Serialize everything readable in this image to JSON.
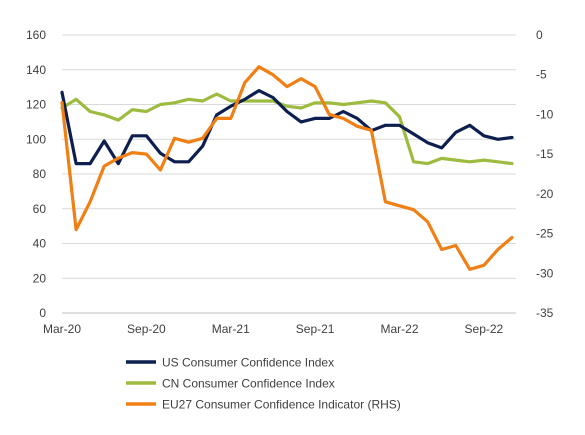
{
  "chart_data": {
    "type": "line",
    "title": "",
    "x_tick_labels": [
      "Mar-20",
      "Sep-20",
      "Mar-21",
      "Sep-21",
      "Mar-22",
      "Sep-22"
    ],
    "x_tick_months": [
      0,
      6,
      12,
      18,
      24,
      30
    ],
    "y_left": {
      "min": 0,
      "max": 160,
      "step": 20,
      "ticks": [
        "0",
        "20",
        "40",
        "60",
        "80",
        "100",
        "120",
        "140",
        "160"
      ]
    },
    "y_right": {
      "min": -35,
      "max": 0,
      "step": 5,
      "ticks": [
        "-35",
        "-30",
        "-25",
        "-20",
        "-15",
        "-10",
        "-5",
        "0"
      ]
    },
    "grid": true,
    "legend_position": "bottom",
    "series": [
      {
        "name": "US Consumer Confidence Index",
        "axis": "left",
        "color": "#0d1f4f",
        "x": [
          0,
          1,
          2,
          3,
          4,
          5,
          6,
          7,
          8,
          9,
          10,
          11,
          12,
          13,
          14,
          15,
          16,
          17,
          18,
          19,
          20,
          21,
          22,
          23,
          24,
          25,
          26,
          27,
          28,
          29,
          30,
          31,
          32
        ],
        "values": [
          127,
          86,
          86,
          99,
          86,
          102,
          102,
          92,
          87,
          87,
          96,
          114,
          119,
          123,
          128,
          124,
          116,
          110,
          112,
          112,
          116,
          112,
          105,
          108,
          108,
          103,
          98,
          95,
          104,
          108,
          102,
          100,
          101
        ]
      },
      {
        "name": "CN Consumer Confidence Index",
        "axis": "left",
        "color": "#9dbb3e",
        "x": [
          0,
          1,
          2,
          3,
          4,
          5,
          6,
          7,
          8,
          9,
          10,
          11,
          12,
          13,
          14,
          15,
          16,
          17,
          18,
          19,
          20,
          21,
          22,
          23,
          24,
          25,
          26,
          27,
          28,
          29,
          30,
          31,
          32
        ],
        "values": [
          118,
          123,
          116,
          114,
          111,
          117,
          116,
          120,
          121,
          123,
          122,
          126,
          122,
          122,
          122,
          122,
          119,
          118,
          121,
          121,
          120,
          121,
          122,
          121,
          113,
          87,
          86,
          89,
          88,
          87,
          88,
          87,
          86
        ]
      },
      {
        "name": "EU27 Consumer Confidence Indicator (RHS)",
        "axis": "right",
        "color": "#f07f14",
        "x": [
          0,
          1,
          2,
          3,
          4,
          5,
          6,
          7,
          8,
          9,
          10,
          11,
          12,
          13,
          14,
          15,
          16,
          17,
          18,
          19,
          20,
          21,
          22,
          23,
          24,
          25,
          26,
          27,
          28,
          29,
          30,
          31,
          32
        ],
        "values": [
          -8.5,
          -24.5,
          -21.0,
          -16.5,
          -15.5,
          -14.8,
          -15.0,
          -17.0,
          -13.0,
          -13.5,
          -13.0,
          -10.5,
          -10.5,
          -6.0,
          -4.0,
          -5.0,
          -6.5,
          -5.5,
          -6.5,
          -10.0,
          -10.5,
          -11.5,
          -12.0,
          -21.0,
          -21.5,
          -22.0,
          -23.5,
          -27.0,
          -26.5,
          -29.5,
          -29.0,
          -27.0,
          -25.5
        ]
      }
    ]
  }
}
